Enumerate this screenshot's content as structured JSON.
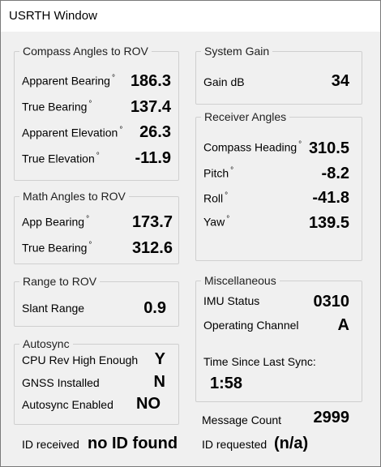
{
  "window": {
    "title": "USRTH Window"
  },
  "compass": {
    "legend": "Compass Angles to ROV",
    "rows": [
      {
        "label": "Apparent Bearing",
        "value": "186.3"
      },
      {
        "label": "True Bearing",
        "value": "137.4"
      },
      {
        "label": "Apparent Elevation",
        "value": "26.3"
      },
      {
        "label": "True Elevation",
        "value": "-11.9"
      }
    ]
  },
  "math": {
    "legend": "Math Angles to ROV",
    "rows": [
      {
        "label": "App Bearing",
        "value": "173.7"
      },
      {
        "label": "True Bearing",
        "value": "312.6"
      }
    ]
  },
  "range": {
    "legend": "Range to ROV",
    "label": "Slant Range",
    "value": "0.9"
  },
  "autosync": {
    "legend": "Autosync",
    "rows": [
      {
        "label": "CPU Rev High Enough",
        "value": "Y"
      },
      {
        "label": "GNSS Installed",
        "value": "N"
      },
      {
        "label": "Autosync Enabled",
        "value": "NO"
      }
    ]
  },
  "system_gain": {
    "legend": "System Gain",
    "label": "Gain dB",
    "value": "34"
  },
  "receiver": {
    "legend": "Receiver Angles",
    "rows": [
      {
        "label": "Compass Heading",
        "value": "310.5"
      },
      {
        "label": "Pitch",
        "value": "-8.2"
      },
      {
        "label": "Roll",
        "value": "-41.8"
      },
      {
        "label": "Yaw",
        "value": "139.5"
      }
    ]
  },
  "misc": {
    "legend": "Miscellaneous",
    "imu_label": "IMU Status",
    "imu_value": "0310",
    "channel_label": "Operating Channel",
    "channel_value": "A",
    "sync_label": "Time Since Last Sync:",
    "sync_value": "1:58"
  },
  "footer": {
    "message_count_label": "Message Count",
    "message_count_value": "2999",
    "id_received_label": "ID received",
    "id_received_value": "no ID found",
    "id_requested_label": "ID requested",
    "id_requested_value": "(n/a)"
  },
  "degree_symbol": "°"
}
